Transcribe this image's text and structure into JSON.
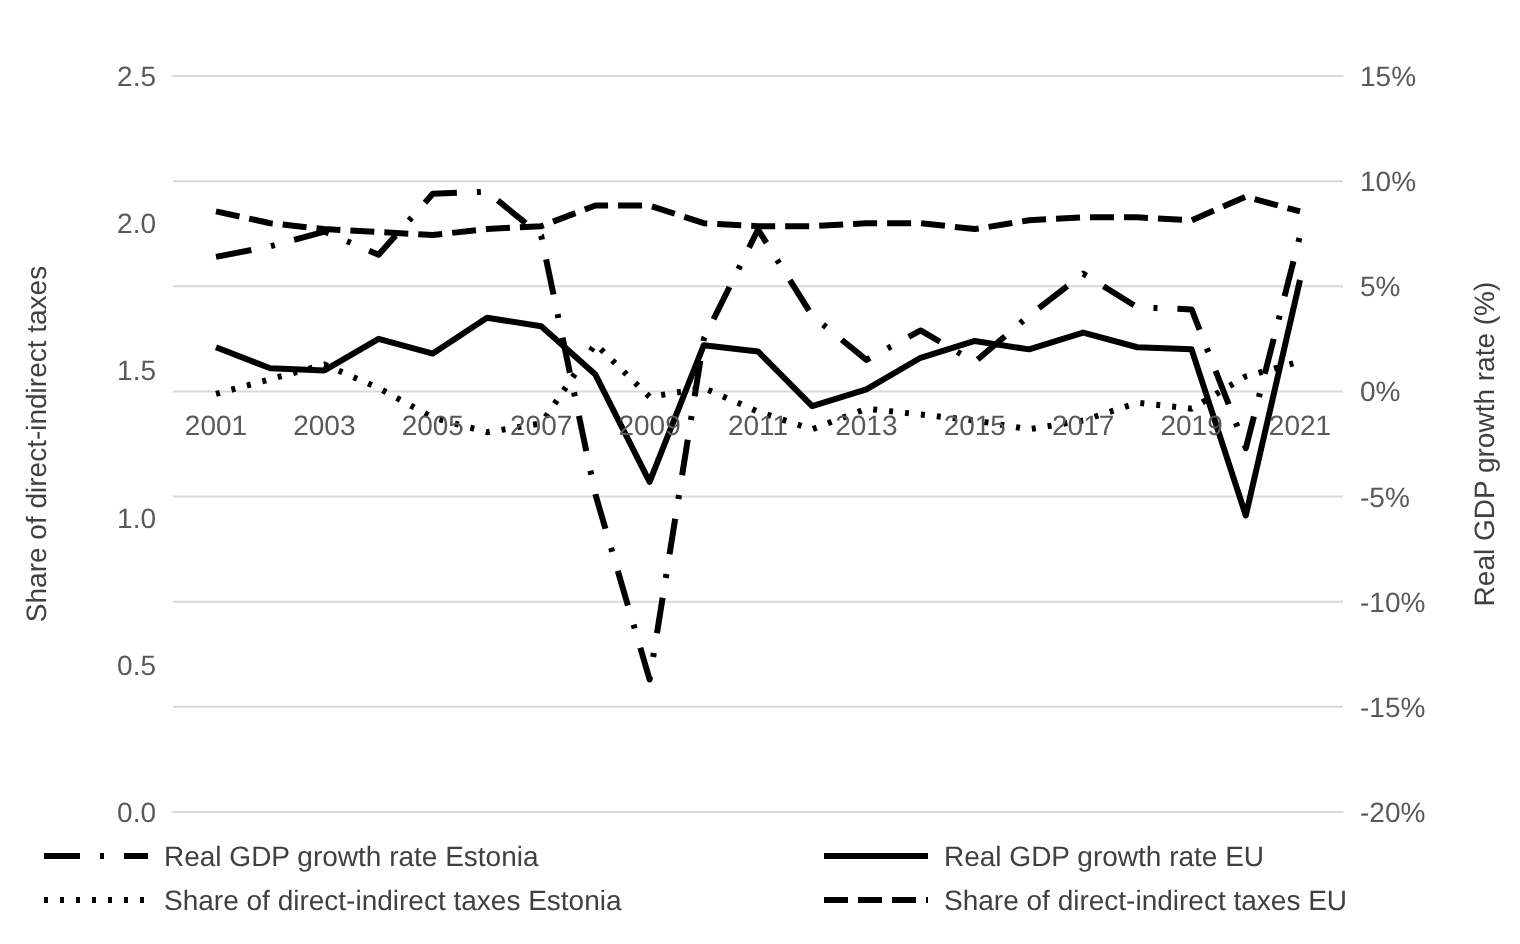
{
  "chart_data": {
    "type": "line",
    "ylabel": "Share of direct-indirect taxes",
    "y2label": "Real GDP growth rate (%)",
    "categories": [
      "2001",
      null,
      "2003",
      null,
      "2005",
      null,
      "2007",
      null,
      "2009",
      null,
      "2011",
      null,
      "2013",
      null,
      "2015",
      null,
      "2017",
      null,
      "2019",
      null,
      "2021"
    ],
    "series": [
      {
        "name": "Real GDP growth rate Estonia",
        "color": "#000000",
        "axis": "y2",
        "line_style": "dashdot",
        "values": [
          6.4,
          6.9,
          7.6,
          6.5,
          9.4,
          9.5,
          7.4,
          -4.9,
          -13.7,
          2.5,
          7.7,
          3.6,
          1.5,
          2.9,
          1.4,
          3.6,
          5.6,
          4.0,
          3.9,
          -2.7,
          7.4
        ]
      },
      {
        "name": "Real GDP growth rate EU",
        "color": "#000000",
        "axis": "y2",
        "line_style": "solid",
        "values": [
          2.1,
          1.1,
          1.0,
          2.5,
          1.8,
          3.5,
          3.1,
          0.8,
          -4.3,
          2.2,
          1.9,
          -0.7,
          0.1,
          1.6,
          2.4,
          2.0,
          2.8,
          2.1,
          2.0,
          -5.9,
          5.3
        ]
      },
      {
        "name": "Share of direct-indirect taxes Estonia",
        "color": "#000000",
        "line_style": "dotted",
        "values": [
          1.42,
          1.47,
          1.52,
          1.44,
          1.34,
          1.29,
          1.32,
          1.59,
          1.41,
          1.44,
          1.36,
          1.3,
          1.37,
          1.35,
          1.33,
          1.3,
          1.33,
          1.39,
          1.37,
          1.48,
          1.53
        ]
      },
      {
        "name": "Share of direct-indirect taxes EU",
        "color": "#000000",
        "line_style": "dashed",
        "values": [
          2.04,
          2.0,
          1.98,
          1.97,
          1.96,
          1.98,
          1.99,
          2.06,
          2.06,
          2.0,
          1.99,
          1.99,
          2.0,
          2.0,
          1.98,
          2.01,
          2.02,
          2.02,
          2.01,
          2.09,
          2.04
        ]
      }
    ],
    "ylim": [
      0,
      2.5
    ],
    "yticks": [
      {
        "value": 0,
        "label": "0.0"
      },
      {
        "value": 0.5,
        "label": "0.5"
      },
      {
        "value": 1,
        "label": "1.0"
      },
      {
        "value": 1.5,
        "label": "1.5"
      },
      {
        "value": 2,
        "label": "2.0"
      },
      {
        "value": 2.5,
        "label": "2.5"
      }
    ],
    "y2lim": [
      -20,
      15
    ],
    "y2ticks": [
      {
        "value": -20,
        "label": "-20%"
      },
      {
        "value": -15,
        "label": "-15%"
      },
      {
        "value": -10,
        "label": "-10%"
      },
      {
        "value": -5,
        "label": "-5%"
      },
      {
        "value": 0,
        "label": "0%"
      },
      {
        "value": 5,
        "label": "5%"
      },
      {
        "value": 10,
        "label": "10%"
      },
      {
        "value": 15,
        "label": "15%"
      }
    ],
    "grid": "y2",
    "legend": "bottom",
    "marker": "none"
  }
}
